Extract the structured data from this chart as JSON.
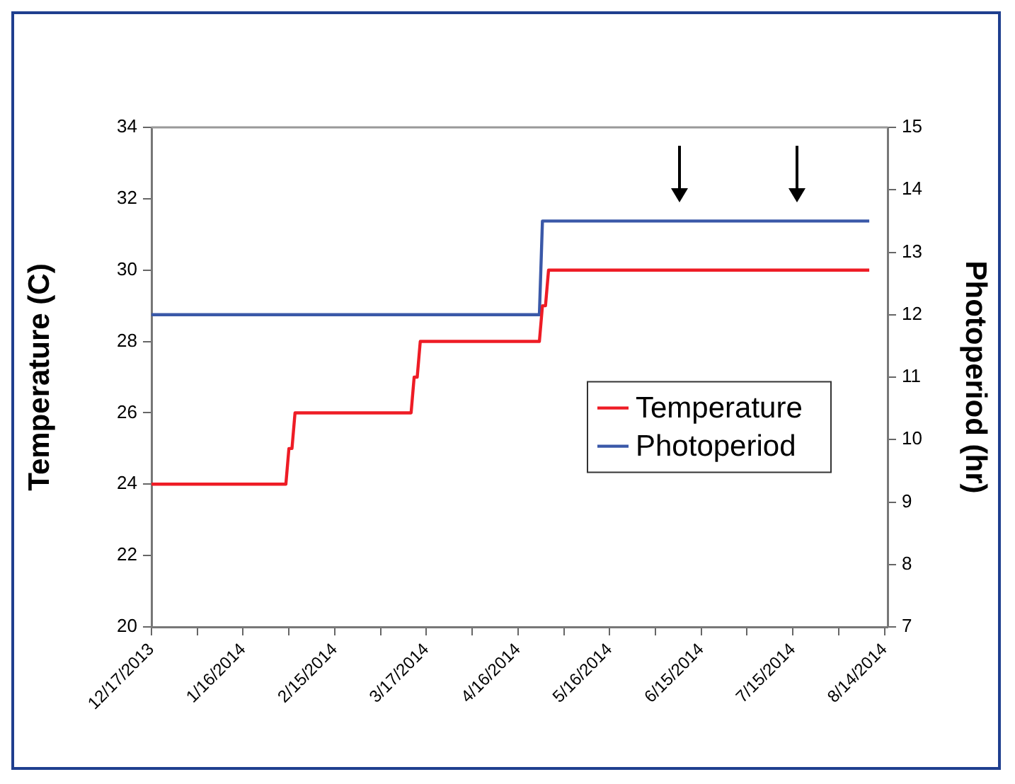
{
  "chart_data": {
    "type": "line",
    "ylabel": "Temperature (C)",
    "y2label": "Photoperiod (hr)",
    "xlim": [
      "2013-12-17",
      "2014-08-15"
    ],
    "xticks": [
      {
        "value": "2013-12-17",
        "label": "12/17/2013"
      },
      {
        "value": "2014-01-01",
        "label": null
      },
      {
        "value": "2014-01-16",
        "label": "1/16/2014"
      },
      {
        "value": "2014-01-31",
        "label": null
      },
      {
        "value": "2014-02-15",
        "label": "2/15/2014"
      },
      {
        "value": "2014-03-02",
        "label": null
      },
      {
        "value": "2014-03-17",
        "label": "3/17/2014"
      },
      {
        "value": "2014-04-01",
        "label": null
      },
      {
        "value": "2014-04-16",
        "label": "4/16/2014"
      },
      {
        "value": "2014-05-01",
        "label": null
      },
      {
        "value": "2014-05-16",
        "label": "5/16/2014"
      },
      {
        "value": "2014-05-31",
        "label": null
      },
      {
        "value": "2014-06-15",
        "label": "6/15/2014"
      },
      {
        "value": "2014-06-30",
        "label": null
      },
      {
        "value": "2014-07-15",
        "label": "7/15/2014"
      },
      {
        "value": "2014-07-30",
        "label": null
      },
      {
        "value": "2014-08-14",
        "label": "8/14/2014"
      }
    ],
    "ylim": [
      20,
      34
    ],
    "yticks": [
      20,
      22,
      24,
      26,
      28,
      30,
      32,
      34
    ],
    "y2lim": [
      7,
      15
    ],
    "y2ticks": [
      7,
      8,
      9,
      10,
      11,
      12,
      13,
      14,
      15
    ],
    "grid": false,
    "legend": "right",
    "marker": "none",
    "series": [
      {
        "name": "Temperature",
        "color": "#ee1c25",
        "x": [
          "2013-12-17",
          "2014-01-30",
          "2014-01-31",
          "2014-02-01",
          "2014-02-02",
          "2014-03-12",
          "2014-03-13",
          "2014-03-14",
          "2014-03-15",
          "2014-04-23",
          "2014-04-24",
          "2014-04-25",
          "2014-04-26",
          "2014-08-09"
        ],
        "values": [
          24,
          24,
          25,
          25,
          26,
          26,
          27,
          27,
          28,
          28,
          29,
          29,
          30,
          30
        ]
      },
      {
        "name": "Photoperiod",
        "color": "#3a58a8",
        "axis": "y2",
        "x": [
          "2013-12-17",
          "2014-04-23",
          "2014-04-24",
          "2014-08-09"
        ],
        "values": [
          12,
          12,
          13.5,
          13.5
        ]
      }
    ]
  }
}
